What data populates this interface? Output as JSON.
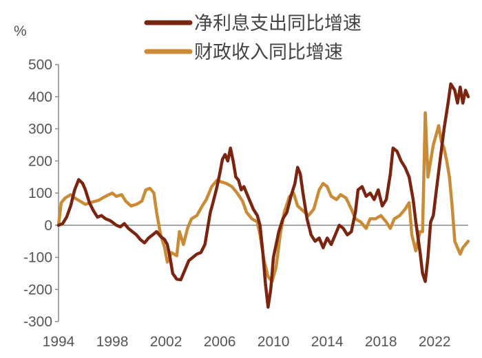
{
  "chart_data": {
    "type": "line",
    "title": "",
    "ylabel": "%",
    "xlabel": "",
    "xlim": [
      1994,
      2024.5
    ],
    "ylim": [
      -300,
      500
    ],
    "yticks": [
      500,
      400,
      300,
      200,
      100,
      0,
      -100,
      -200,
      -300
    ],
    "yticklabels": [
      "500",
      "400",
      "300",
      "200",
      "100",
      "0",
      "-100",
      "-200",
      "-300"
    ],
    "xticks": [
      1994,
      1998,
      2002,
      2006,
      2010,
      2014,
      2018,
      2022
    ],
    "xticklabels": [
      "1994",
      "1998",
      "2002",
      "2006",
      "2010",
      "2014",
      "2018",
      "2022"
    ],
    "legend_position": "top",
    "series": [
      {
        "name": "净利息支出同比增速",
        "color": "#7b2410",
        "points": [
          [
            1994.0,
            0
          ],
          [
            1994.3,
            5
          ],
          [
            1994.6,
            25
          ],
          [
            1994.9,
            60
          ],
          [
            1995.2,
            110
          ],
          [
            1995.5,
            142
          ],
          [
            1995.8,
            130
          ],
          [
            1996.0,
            110
          ],
          [
            1996.3,
            70
          ],
          [
            1996.6,
            45
          ],
          [
            1996.9,
            25
          ],
          [
            1997.2,
            30
          ],
          [
            1997.5,
            20
          ],
          [
            1997.8,
            15
          ],
          [
            1998.0,
            10
          ],
          [
            1998.3,
            0
          ],
          [
            1998.6,
            -5
          ],
          [
            1998.9,
            5
          ],
          [
            1999.2,
            -10
          ],
          [
            1999.5,
            -20
          ],
          [
            1999.8,
            -30
          ],
          [
            2000.1,
            -45
          ],
          [
            2000.4,
            -55
          ],
          [
            2000.7,
            -40
          ],
          [
            2001.0,
            -30
          ],
          [
            2001.3,
            -20
          ],
          [
            2001.6,
            -35
          ],
          [
            2001.9,
            -45
          ],
          [
            2002.1,
            -60
          ],
          [
            2002.3,
            -100
          ],
          [
            2002.5,
            -150
          ],
          [
            2002.8,
            -168
          ],
          [
            2003.1,
            -170
          ],
          [
            2003.4,
            -140
          ],
          [
            2003.7,
            -110
          ],
          [
            2004.0,
            -100
          ],
          [
            2004.3,
            -90
          ],
          [
            2004.6,
            -85
          ],
          [
            2004.9,
            -60
          ],
          [
            2005.1,
            -10
          ],
          [
            2005.3,
            40
          ],
          [
            2005.5,
            70
          ],
          [
            2005.8,
            120
          ],
          [
            2006.0,
            160
          ],
          [
            2006.2,
            205
          ],
          [
            2006.4,
            220
          ],
          [
            2006.6,
            200
          ],
          [
            2006.8,
            240
          ],
          [
            2007.0,
            200
          ],
          [
            2007.2,
            150
          ],
          [
            2007.4,
            140
          ],
          [
            2007.6,
            110
          ],
          [
            2007.8,
            120
          ],
          [
            2008.0,
            100
          ],
          [
            2008.2,
            80
          ],
          [
            2008.5,
            50
          ],
          [
            2008.8,
            30
          ],
          [
            2009.0,
            0
          ],
          [
            2009.2,
            -80
          ],
          [
            2009.4,
            -180
          ],
          [
            2009.6,
            -255
          ],
          [
            2009.8,
            -200
          ],
          [
            2010.0,
            -100
          ],
          [
            2010.2,
            -60
          ],
          [
            2010.4,
            -20
          ],
          [
            2010.7,
            20
          ],
          [
            2011.0,
            40
          ],
          [
            2011.3,
            90
          ],
          [
            2011.6,
            130
          ],
          [
            2011.8,
            180
          ],
          [
            2012.0,
            160
          ],
          [
            2012.2,
            100
          ],
          [
            2012.5,
            20
          ],
          [
            2012.8,
            -30
          ],
          [
            2013.1,
            -50
          ],
          [
            2013.4,
            -40
          ],
          [
            2013.7,
            -70
          ],
          [
            2014.0,
            -40
          ],
          [
            2014.3,
            -60
          ],
          [
            2014.6,
            -30
          ],
          [
            2014.9,
            0
          ],
          [
            2015.2,
            -10
          ],
          [
            2015.5,
            -30
          ],
          [
            2015.8,
            -20
          ],
          [
            2016.1,
            40
          ],
          [
            2016.3,
            110
          ],
          [
            2016.6,
            120
          ],
          [
            2016.9,
            90
          ],
          [
            2017.2,
            100
          ],
          [
            2017.5,
            80
          ],
          [
            2017.8,
            110
          ],
          [
            2018.1,
            60
          ],
          [
            2018.4,
            80
          ],
          [
            2018.7,
            160
          ],
          [
            2018.9,
            240
          ],
          [
            2019.2,
            230
          ],
          [
            2019.5,
            200
          ],
          [
            2019.8,
            180
          ],
          [
            2020.1,
            150
          ],
          [
            2020.4,
            80
          ],
          [
            2020.6,
            10
          ],
          [
            2020.9,
            -80
          ],
          [
            2021.1,
            -150
          ],
          [
            2021.3,
            -175
          ],
          [
            2021.5,
            -100
          ],
          [
            2021.7,
            10
          ],
          [
            2021.9,
            30
          ],
          [
            2022.1,
            100
          ],
          [
            2022.4,
            200
          ],
          [
            2022.7,
            300
          ],
          [
            2023.0,
            380
          ],
          [
            2023.2,
            440
          ],
          [
            2023.5,
            420
          ],
          [
            2023.7,
            380
          ],
          [
            2023.9,
            430
          ],
          [
            2024.1,
            380
          ],
          [
            2024.3,
            420
          ],
          [
            2024.5,
            400
          ]
        ]
      },
      {
        "name": "财政收入同比增速",
        "color": "#c98b35",
        "points": [
          [
            1994.0,
            0
          ],
          [
            1994.2,
            70
          ],
          [
            1994.5,
            85
          ],
          [
            1994.9,
            95
          ],
          [
            1995.2,
            85
          ],
          [
            1995.6,
            75
          ],
          [
            1996.0,
            65
          ],
          [
            1996.5,
            72
          ],
          [
            1997.0,
            78
          ],
          [
            1997.5,
            90
          ],
          [
            1998.0,
            100
          ],
          [
            1998.3,
            90
          ],
          [
            1998.7,
            95
          ],
          [
            1999.0,
            75
          ],
          [
            1999.4,
            60
          ],
          [
            1999.8,
            65
          ],
          [
            2000.2,
            75
          ],
          [
            2000.5,
            110
          ],
          [
            2000.8,
            115
          ],
          [
            2001.1,
            100
          ],
          [
            2001.3,
            40
          ],
          [
            2001.6,
            -30
          ],
          [
            2001.9,
            -70
          ],
          [
            2002.1,
            -115
          ],
          [
            2002.4,
            -85
          ],
          [
            2002.8,
            -95
          ],
          [
            2003.0,
            -20
          ],
          [
            2003.3,
            -60
          ],
          [
            2003.6,
            -10
          ],
          [
            2003.9,
            20
          ],
          [
            2004.3,
            30
          ],
          [
            2004.7,
            60
          ],
          [
            2005.0,
            80
          ],
          [
            2005.4,
            120
          ],
          [
            2005.8,
            140
          ],
          [
            2006.1,
            135
          ],
          [
            2006.5,
            130
          ],
          [
            2006.9,
            120
          ],
          [
            2007.3,
            100
          ],
          [
            2007.7,
            75
          ],
          [
            2008.0,
            40
          ],
          [
            2008.4,
            20
          ],
          [
            2008.8,
            10
          ],
          [
            2009.0,
            -30
          ],
          [
            2009.3,
            -110
          ],
          [
            2009.6,
            -160
          ],
          [
            2009.9,
            -175
          ],
          [
            2010.2,
            -130
          ],
          [
            2010.5,
            -30
          ],
          [
            2010.8,
            40
          ],
          [
            2011.2,
            90
          ],
          [
            2011.5,
            100
          ],
          [
            2011.8,
            60
          ],
          [
            2012.2,
            45
          ],
          [
            2012.6,
            30
          ],
          [
            2013.0,
            50
          ],
          [
            2013.4,
            110
          ],
          [
            2013.7,
            130
          ],
          [
            2014.0,
            120
          ],
          [
            2014.3,
            90
          ],
          [
            2014.7,
            80
          ],
          [
            2015.0,
            95
          ],
          [
            2015.4,
            85
          ],
          [
            2015.8,
            50
          ],
          [
            2016.1,
            20
          ],
          [
            2016.5,
            10
          ],
          [
            2016.9,
            -10
          ],
          [
            2017.2,
            20
          ],
          [
            2017.6,
            20
          ],
          [
            2018.0,
            30
          ],
          [
            2018.4,
            10
          ],
          [
            2018.7,
            -10
          ],
          [
            2019.0,
            20
          ],
          [
            2019.4,
            30
          ],
          [
            2019.8,
            50
          ],
          [
            2020.1,
            70
          ],
          [
            2020.3,
            -30
          ],
          [
            2020.6,
            -80
          ],
          [
            2020.9,
            -20
          ],
          [
            2021.1,
            -20
          ],
          [
            2021.3,
            350
          ],
          [
            2021.5,
            150
          ],
          [
            2021.7,
            200
          ],
          [
            2021.9,
            250
          ],
          [
            2022.1,
            280
          ],
          [
            2022.3,
            310
          ],
          [
            2022.5,
            260
          ],
          [
            2022.7,
            240
          ],
          [
            2022.9,
            200
          ],
          [
            2023.1,
            150
          ],
          [
            2023.3,
            60
          ],
          [
            2023.5,
            -50
          ],
          [
            2023.7,
            -70
          ],
          [
            2023.9,
            -90
          ],
          [
            2024.1,
            -70
          ],
          [
            2024.3,
            -60
          ],
          [
            2024.5,
            -50
          ]
        ]
      }
    ]
  }
}
